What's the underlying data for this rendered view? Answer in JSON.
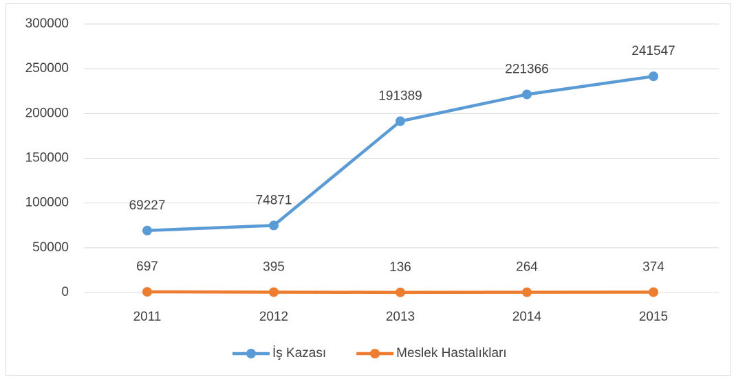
{
  "chart_data": {
    "type": "line",
    "categories": [
      "2011",
      "2012",
      "2013",
      "2014",
      "2015"
    ],
    "series": [
      {
        "name": "İş Kazası",
        "color": "#5b9bd5",
        "values": [
          69227,
          74871,
          191389,
          221366,
          241547
        ]
      },
      {
        "name": "Meslek Hastalıkları",
        "color": "#ed7d31",
        "values": [
          697,
          395,
          136,
          264,
          374
        ]
      }
    ],
    "ylim": [
      0,
      300000
    ],
    "yticks": [
      0,
      50000,
      100000,
      150000,
      200000,
      250000,
      300000
    ],
    "grid": true,
    "legend": "bottom"
  }
}
